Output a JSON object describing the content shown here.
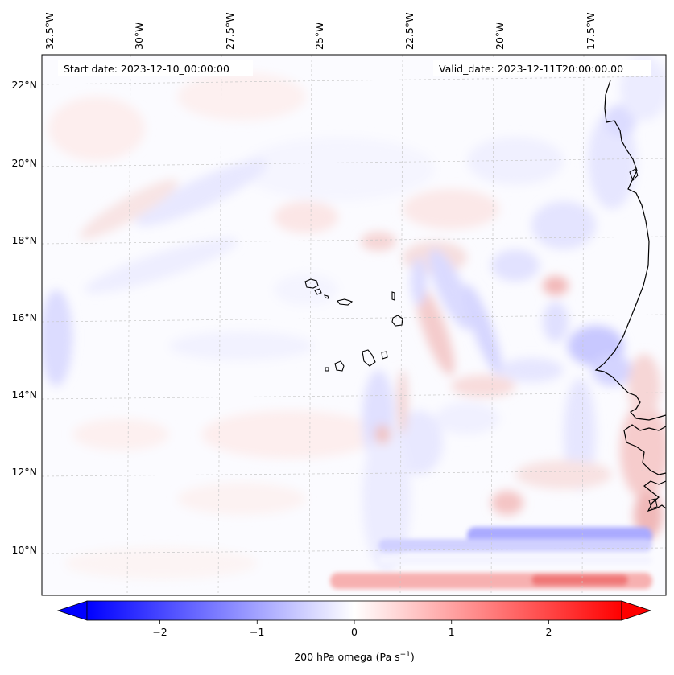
{
  "map": {
    "start_date_label": "Start date: 2023-12-10_00:00:00",
    "valid_date_label": "Valid_date: 2023-12-11T20:00:00.00",
    "longitude_labels": [
      "32.5°W",
      "30°W",
      "27.5°W",
      "25°W",
      "22.5°W",
      "20°W",
      "17.5°W"
    ],
    "latitude_labels": [
      "22°N",
      "20°N",
      "18°N",
      "16°N",
      "14°N",
      "12°N",
      "10°N"
    ],
    "extent": {
      "lon_min": -32.5,
      "lon_max": -15.3,
      "lat_min": 9.0,
      "lat_max": 22.6
    }
  },
  "colorbar": {
    "label": "200 hPa omega (Pa s",
    "label_superscript": "−1",
    "label_close": ")",
    "tick_labels": [
      "−2",
      "−1",
      "0",
      "1",
      "2"
    ],
    "range": [
      -2.75,
      2.75
    ],
    "low_color": "#0000ff",
    "high_color": "#ff0000",
    "mid_color": "#ffffff"
  }
}
